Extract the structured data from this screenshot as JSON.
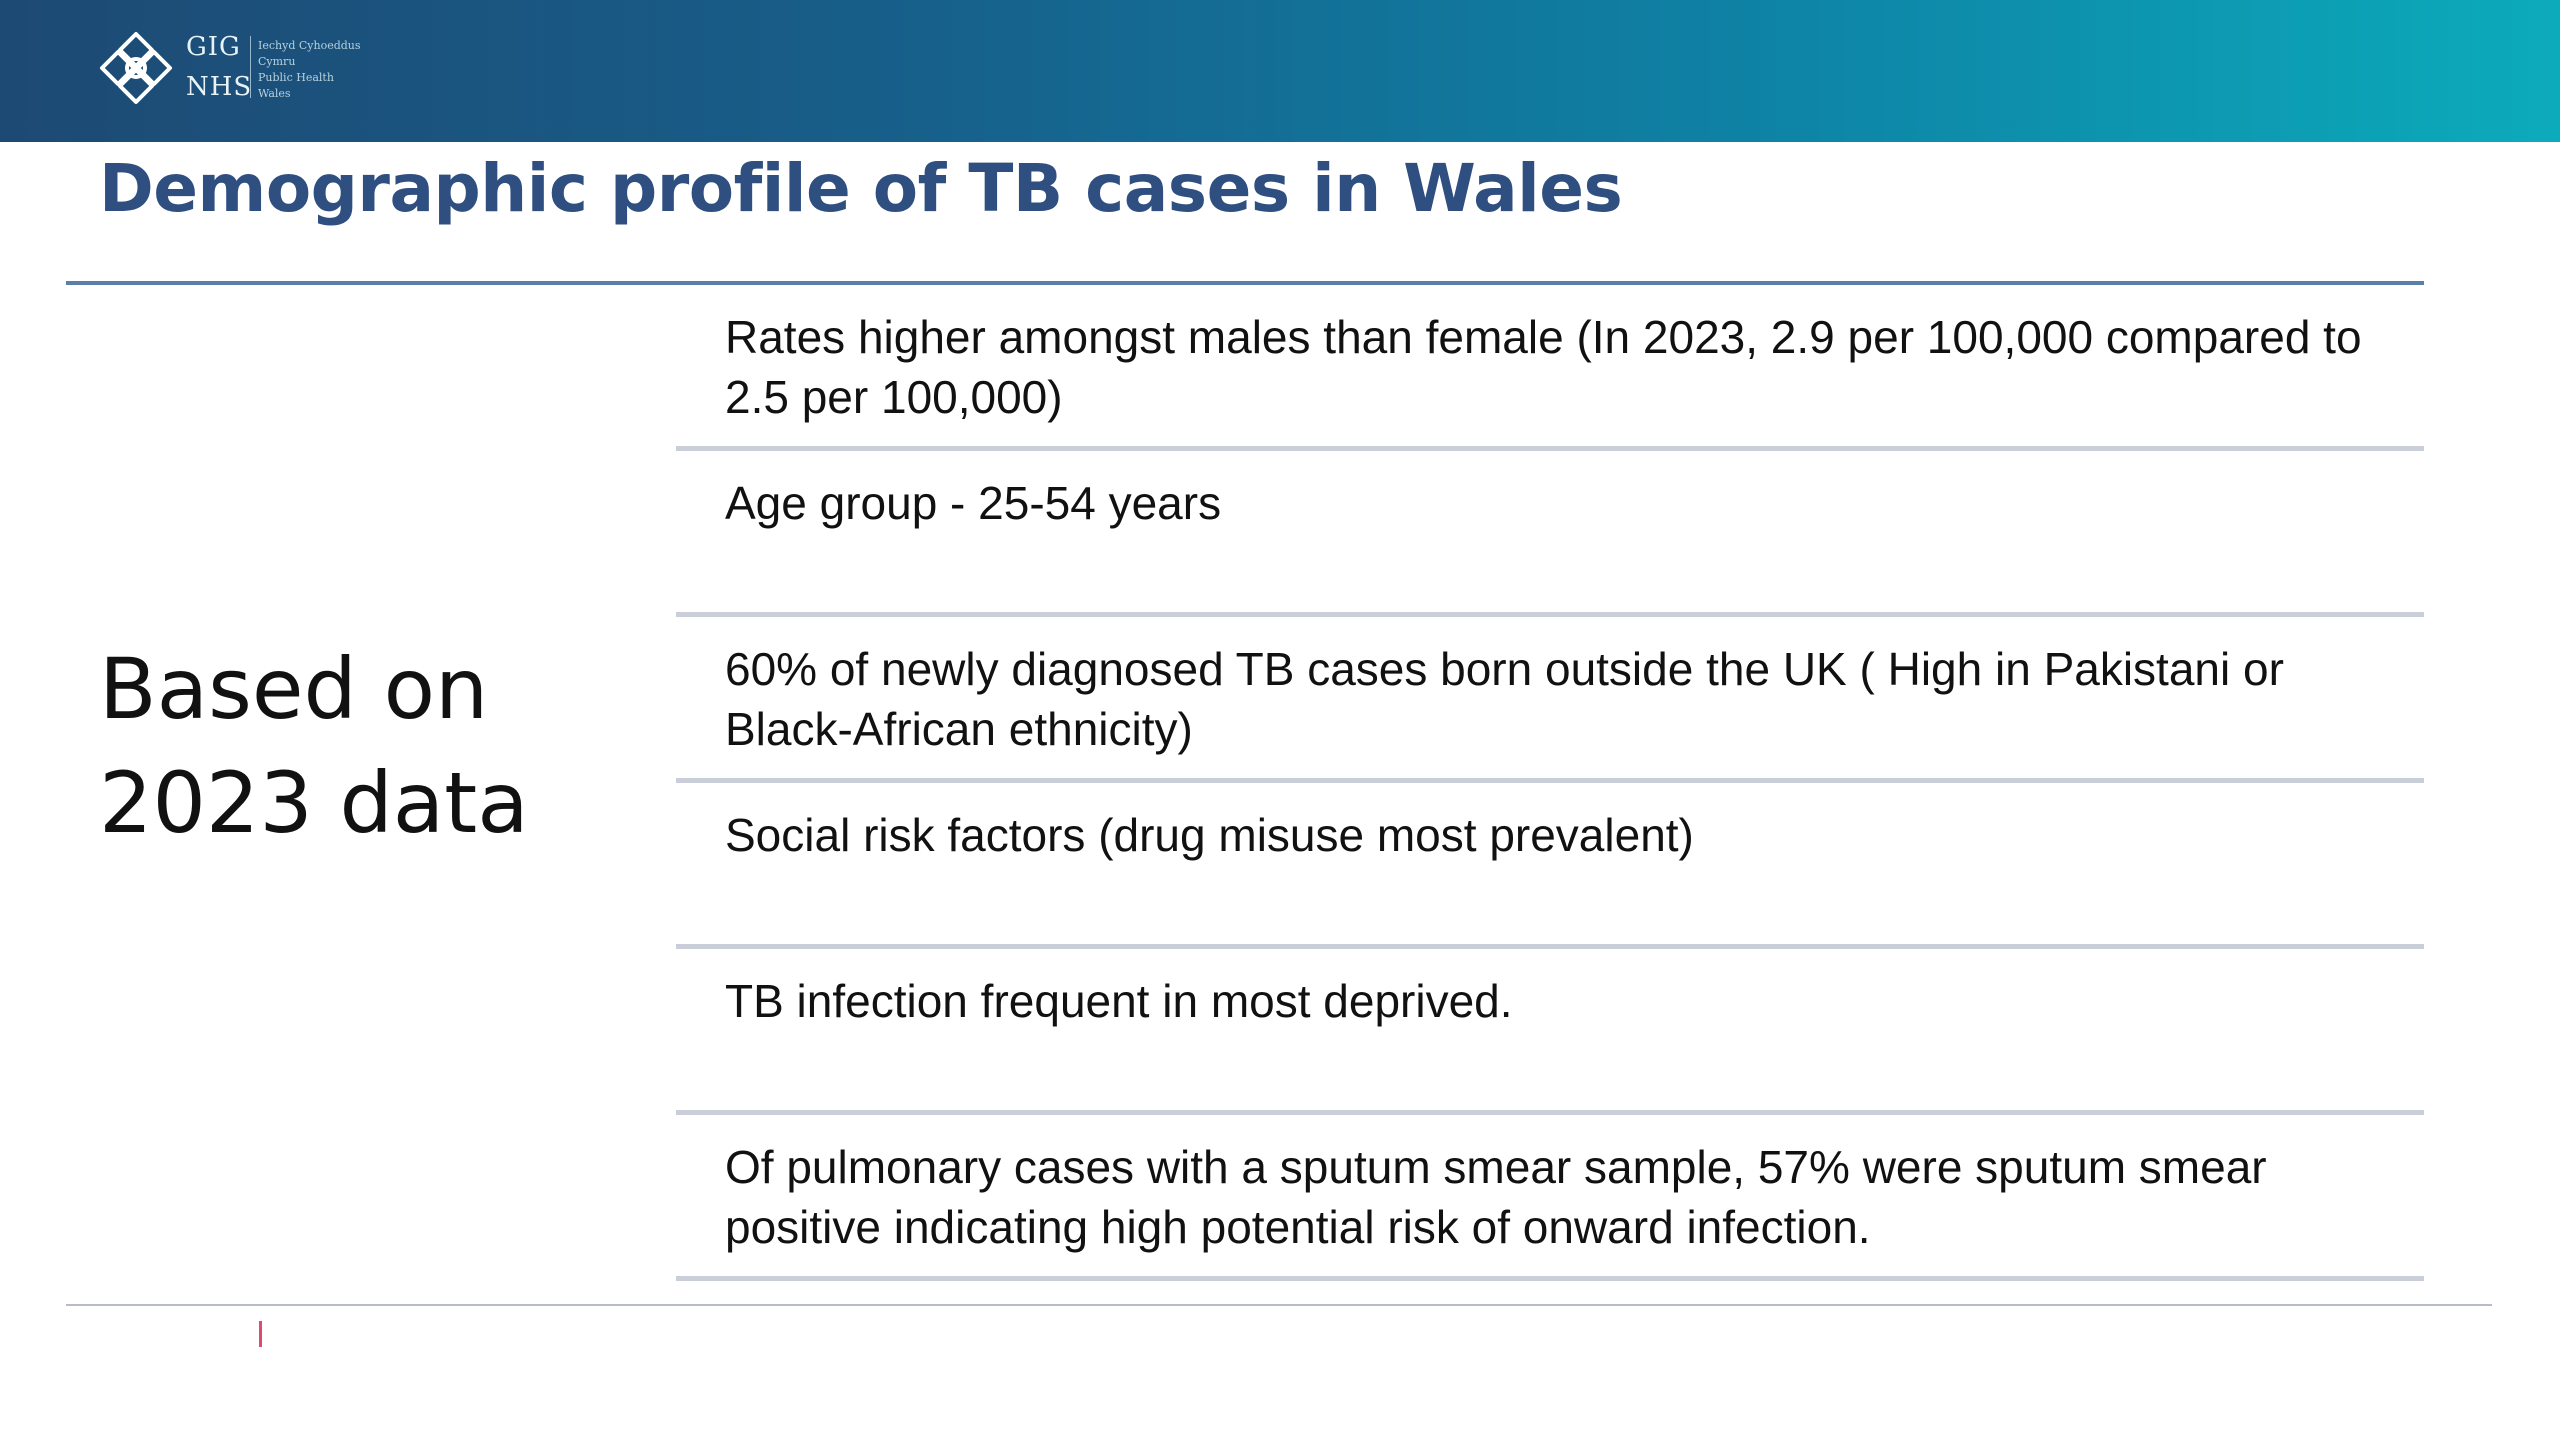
{
  "header": {
    "logo": {
      "line1": "GIG",
      "line2": "NHS",
      "sub": [
        "Iechyd Cyhoeddus",
        "Cymru",
        "Public Health",
        "Wales"
      ]
    }
  },
  "slide": {
    "title": "Demographic profile of TB cases in Wales",
    "side_label": "Based on 2023 data",
    "items": [
      {
        "text": "Rates higher amongst males than female (In 2023, 2.9 per 100,000 compared to 2.5 per 100,000)"
      },
      {
        "text": "Age group - 25-54 years"
      },
      {
        "text": "60% of newly diagnosed TB cases born outside the UK ( High in Pakistani or Black-African ethnicity)"
      },
      {
        "text": "Social risk factors (drug misuse most prevalent)"
      },
      {
        "text": "TB infection frequent in most deprived."
      },
      {
        "text": "Of pulmonary cases with a sputum smear sample, 57% were sputum smear positive indicating high potential risk of onward infection."
      }
    ]
  },
  "colors": {
    "banner_start": "#1d4a74",
    "banner_end": "#0cabbb",
    "title": "#2f4f80",
    "rule": "#5a7fa9",
    "divider": "#c9ced9",
    "footer_mark": "#e04a6e"
  }
}
